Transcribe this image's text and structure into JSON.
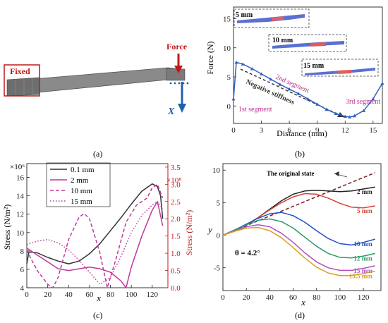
{
  "panels": {
    "a": {
      "caption": "(a)",
      "fixed_label": "Fixed",
      "force_label": "Force",
      "axis_label": "X"
    },
    "b": {
      "caption": "(b)",
      "inset_labels": [
        "5 mm",
        "10 mm",
        "15 mm"
      ],
      "annotations": [
        "1st segment",
        "2nd segment",
        "3rd segment",
        "Negative stiffness"
      ]
    },
    "c": {
      "caption": "(c)",
      "y_exp_left": "×10⁶",
      "y_exp_right": "×10⁸"
    },
    "d": {
      "caption": "(d)",
      "original_state": "The original state",
      "theta_label": "θ = 4.2°"
    }
  },
  "colors": {
    "blue_curve": "#3060c0",
    "magenta": "#c0389a",
    "red_axis": "#c01818",
    "dark": "#333333",
    "annot_magenta": "#b8308f"
  },
  "chart_data": [
    {
      "id": "b",
      "type": "line",
      "xlabel": "Distance (mm)",
      "ylabel": "Force (N)",
      "xlim": [
        0,
        16
      ],
      "ylim": [
        -3,
        17
      ],
      "xticks": [
        0,
        3,
        6,
        9,
        12,
        15
      ],
      "yticks": [
        0,
        5,
        10,
        15
      ],
      "series": [
        {
          "color": "#3060c0",
          "x": [
            0,
            0.3,
            1,
            2,
            3,
            4,
            5,
            6,
            7,
            8,
            9,
            10,
            11,
            12,
            12.5,
            13,
            14,
            15,
            16
          ],
          "y": [
            1.2,
            7.5,
            7.2,
            6.4,
            5.5,
            4.6,
            3.7,
            2.9,
            2.1,
            1.2,
            0.3,
            -0.6,
            -1.3,
            -1.8,
            -1.9,
            -1.7,
            -0.8,
            1.2,
            3.9
          ]
        }
      ]
    },
    {
      "id": "c",
      "type": "line",
      "xlabel": "x",
      "ylabel": "Stress (N/m²)",
      "ylabel_right": "Stress (N/m²)",
      "xlim": [
        0,
        135
      ],
      "ylim": [
        4,
        17.5
      ],
      "ylim_right": [
        0,
        3.6
      ],
      "xticks": [
        0,
        20,
        40,
        60,
        80,
        100,
        120
      ],
      "yticks": [
        4,
        6,
        8,
        10,
        12,
        14,
        16
      ],
      "yticks_right": [
        0.0,
        0.5,
        1.0,
        1.5,
        2.0,
        2.5,
        3.0,
        3.5
      ],
      "yticks_right_labels": [
        "0.0",
        "0.5",
        "1.0",
        "1.5",
        "2.0",
        "2.5",
        "3.0",
        "3.5"
      ],
      "legend_position": "top-left",
      "series": [
        {
          "name": "0.1 mm",
          "axis": "left",
          "style": "solid",
          "color": "#333333",
          "x": [
            0,
            2,
            10,
            20,
            30,
            40,
            50,
            60,
            70,
            80,
            90,
            100,
            110,
            120,
            125,
            128,
            130
          ],
          "y": [
            6.6,
            7.9,
            7.8,
            7.3,
            6.9,
            6.6,
            6.9,
            7.7,
            8.8,
            10.2,
            11.6,
            13.1,
            14.5,
            15.3,
            15.0,
            14.0,
            11.5
          ]
        },
        {
          "name": "2 mm",
          "axis": "right",
          "style": "solid",
          "color": "#c0389a",
          "x": [
            0,
            10,
            20,
            30,
            40,
            50,
            60,
            70,
            80,
            90,
            95,
            100,
            110,
            120,
            125,
            130
          ],
          "y": [
            1.15,
            0.95,
            0.75,
            0.55,
            0.5,
            0.55,
            0.6,
            0.55,
            0.45,
            0.2,
            0.0,
            0.6,
            1.5,
            2.25,
            2.5,
            1.8
          ]
        },
        {
          "name": "10 mm",
          "axis": "right",
          "style": "dashed",
          "color": "#c0389a",
          "x": [
            0,
            3,
            10,
            20,
            25,
            30,
            40,
            50,
            55,
            60,
            70,
            77,
            85,
            95,
            105,
            115,
            120,
            125,
            130
          ],
          "y": [
            1.1,
            0.9,
            0.5,
            0.1,
            0.0,
            0.3,
            1.4,
            2.05,
            2.15,
            2.0,
            1.0,
            0.0,
            0.8,
            1.9,
            2.4,
            2.6,
            2.9,
            3.0,
            2.6
          ]
        },
        {
          "name": "15 mm",
          "axis": "right",
          "style": "dotted",
          "color": "#c0389a",
          "x": [
            0,
            10,
            20,
            30,
            40,
            50,
            60,
            70,
            80,
            90,
            100,
            110,
            120,
            125,
            130
          ],
          "y": [
            1.25,
            1.35,
            1.4,
            1.3,
            1.1,
            0.8,
            0.45,
            0.1,
            0.3,
            0.9,
            1.6,
            2.1,
            2.4,
            2.5,
            2.3
          ]
        }
      ]
    },
    {
      "id": "d",
      "type": "line",
      "xlabel": "x",
      "ylabel": "y",
      "xlim": [
        0,
        135
      ],
      "ylim": [
        -8.5,
        11
      ],
      "xticks": [
        0,
        20,
        40,
        60,
        80,
        100,
        120
      ],
      "yticks": [
        -5,
        0,
        5,
        10
      ],
      "series": [
        {
          "name": "The original state",
          "style": "dashed",
          "color": "#7a1a1a",
          "x": [
            0,
            130
          ],
          "y": [
            0,
            9.6
          ]
        },
        {
          "name": "2 mm",
          "color": "#222222",
          "label_color": "#222222",
          "x": [
            0,
            10,
            20,
            30,
            40,
            50,
            60,
            70,
            80,
            90,
            100,
            110,
            120,
            130
          ],
          "y": [
            0,
            0.8,
            1.6,
            2.7,
            4.0,
            5.3,
            6.3,
            6.8,
            6.9,
            6.8,
            6.7,
            6.8,
            7.1,
            7.4
          ]
        },
        {
          "name": "5 mm",
          "color": "#d0443a",
          "label_color": "#d0443a",
          "x": [
            0,
            10,
            20,
            30,
            40,
            50,
            60,
            70,
            80,
            90,
            100,
            110,
            120,
            130
          ],
          "y": [
            0,
            0.8,
            1.6,
            2.7,
            3.9,
            5.0,
            5.9,
            6.4,
            6.3,
            5.7,
            4.9,
            4.3,
            4.2,
            4.5
          ]
        },
        {
          "name": "10 mm",
          "color": "#2050c8",
          "label_color": "#2050c8",
          "x": [
            0,
            10,
            20,
            30,
            40,
            50,
            60,
            70,
            80,
            90,
            100,
            110,
            120,
            130
          ],
          "y": [
            0,
            0.8,
            1.7,
            2.6,
            3.3,
            3.5,
            3.0,
            2.0,
            0.7,
            -0.5,
            -1.3,
            -1.5,
            -1.1,
            -0.6
          ]
        },
        {
          "name": "12 mm",
          "color": "#2a9a6a",
          "label_color": "#2a9a6a",
          "x": [
            0,
            10,
            20,
            30,
            40,
            50,
            60,
            70,
            80,
            90,
            100,
            110,
            120,
            130
          ],
          "y": [
            0,
            0.8,
            1.6,
            2.3,
            2.5,
            2.1,
            1.1,
            -0.3,
            -1.7,
            -2.8,
            -3.4,
            -3.5,
            -3.2,
            -2.8
          ]
        },
        {
          "name": "15 mm",
          "color": "#b050c0",
          "label_color": "#b050c0",
          "x": [
            0,
            10,
            20,
            30,
            40,
            50,
            60,
            70,
            80,
            90,
            100,
            110,
            120,
            130
          ],
          "y": [
            0,
            0.7,
            1.3,
            1.6,
            1.3,
            0.3,
            -1.1,
            -2.7,
            -4.1,
            -5.0,
            -5.4,
            -5.4,
            -5.1,
            -4.7
          ]
        },
        {
          "name": "15.5 mm",
          "color": "#d4a020",
          "label_color": "#d4a020",
          "x": [
            0,
            10,
            20,
            30,
            40,
            50,
            60,
            70,
            80,
            90,
            100,
            110,
            120,
            130
          ],
          "y": [
            0,
            0.6,
            1.1,
            1.2,
            0.7,
            -0.4,
            -1.9,
            -3.5,
            -4.9,
            -5.8,
            -6.2,
            -6.2,
            -5.9,
            -5.5
          ]
        }
      ]
    }
  ]
}
